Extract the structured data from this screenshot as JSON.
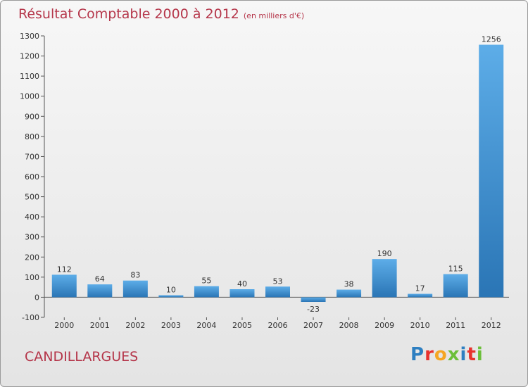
{
  "header": {
    "title": "Résultat Comptable 2000 à 2012",
    "subtitle": "(en milliers d'€)"
  },
  "footer": {
    "commune": "CANDILLARGUES",
    "logo_letters": [
      "P",
      "r",
      "o",
      "x",
      "i",
      "t",
      "i"
    ],
    "logo_colors": [
      "#2e7fc1",
      "#e8322e",
      "#f5a623",
      "#6cbf3a",
      "#2e7fc1",
      "#e8322e",
      "#6cbf3a"
    ]
  },
  "colors": {
    "title": "#b5364a",
    "bar_light": "#5dade8",
    "bar_dark": "#2a75b5"
  },
  "chart_data": {
    "type": "bar",
    "categories": [
      "2000",
      "2001",
      "2002",
      "2003",
      "2004",
      "2005",
      "2006",
      "2007",
      "2008",
      "2009",
      "2010",
      "2011",
      "2012"
    ],
    "values": [
      112,
      64,
      83,
      10,
      55,
      40,
      53,
      -23,
      38,
      190,
      17,
      115,
      1256
    ],
    "ylim": [
      -100,
      1300
    ],
    "yticks": [
      -100,
      0,
      100,
      200,
      300,
      400,
      500,
      600,
      700,
      800,
      900,
      1000,
      1100,
      1200,
      1300
    ],
    "data_labels": true,
    "grid": false
  }
}
